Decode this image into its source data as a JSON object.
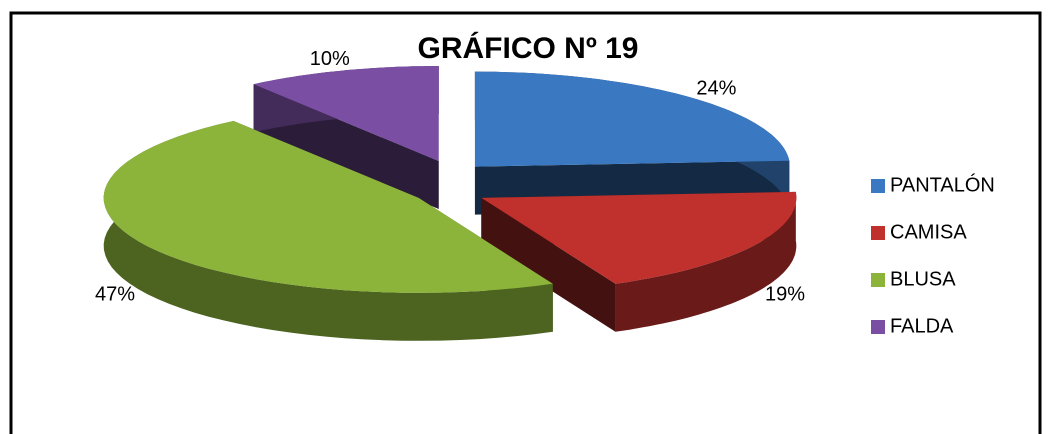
{
  "chart_data": {
    "type": "pie",
    "title": "GRÁFICO Nº 19",
    "categories": [
      "PANTALÓN",
      "CAMISA",
      "BLUSA",
      "FALDA"
    ],
    "values": [
      24,
      19,
      47,
      10
    ],
    "value_labels": [
      "24%",
      "19%",
      "47%",
      "10%"
    ],
    "colors": [
      "#3a78c2",
      "#c0302c",
      "#8cb43a",
      "#7a4fa3"
    ],
    "legend": "right"
  }
}
